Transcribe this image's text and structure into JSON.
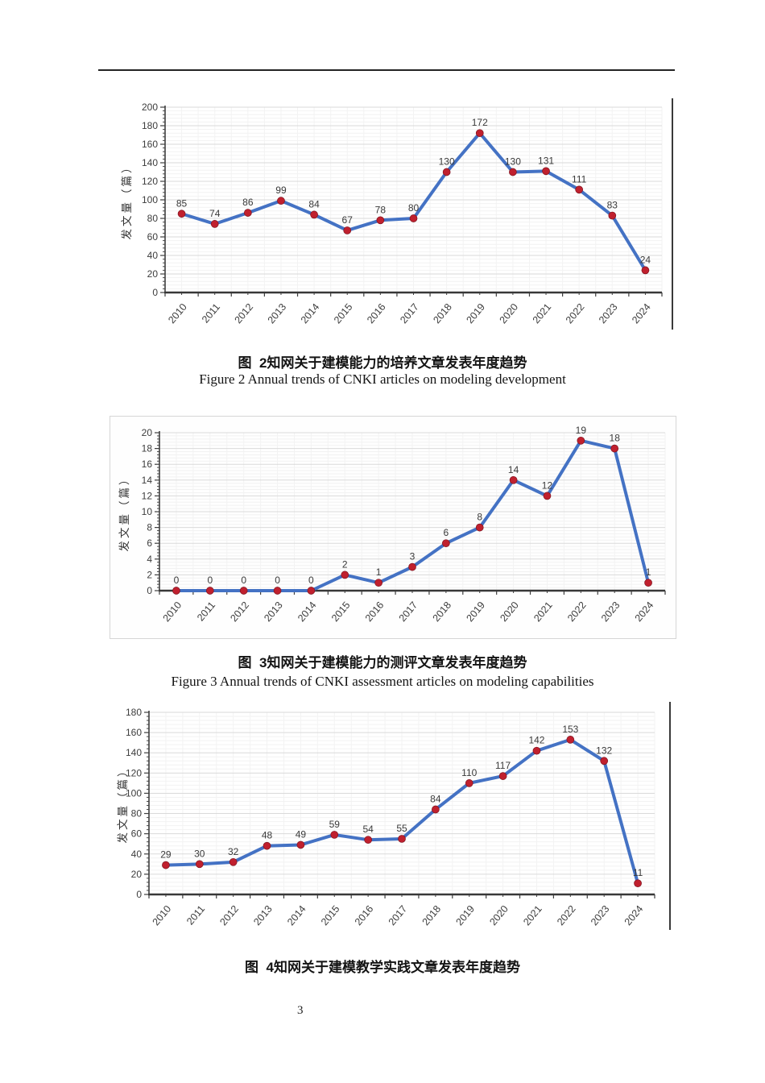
{
  "page": {
    "number": "3"
  },
  "figures": [
    {
      "caption_zh": "图  2知网关于建模能力的培养文章发表年度趋势",
      "caption_en": "Figure 2 Annual trends of CNKI articles on modeling development"
    },
    {
      "caption_zh": "图  3知网关于建模能力的测评文章发表年度趋势",
      "caption_en": "Figure 3 Annual trends of CNKI assessment articles on modeling capabilities"
    },
    {
      "caption_zh": "图  4知网关于建模教学实践文章发表年度趋势"
    }
  ],
  "chart_data": [
    {
      "type": "line",
      "title": "",
      "xlabel": "",
      "ylabel": "发文量（篇）",
      "categories": [
        "2010",
        "2011",
        "2012",
        "2013",
        "2014",
        "2015",
        "2016",
        "2017",
        "2018",
        "2019",
        "2020",
        "2021",
        "2022",
        "2023",
        "2024"
      ],
      "values": [
        85,
        74,
        86,
        99,
        84,
        67,
        78,
        80,
        130,
        172,
        130,
        131,
        111,
        83,
        24
      ],
      "ylim": [
        0,
        200
      ],
      "ytick_step": 20,
      "grid": true,
      "legend": false,
      "line_color": "#4472c4",
      "marker_color": "#c0202e"
    },
    {
      "type": "line",
      "title": "",
      "xlabel": "",
      "ylabel": "发文量（篇）",
      "categories": [
        "2010",
        "2011",
        "2012",
        "2013",
        "2014",
        "2015",
        "2016",
        "2017",
        "2018",
        "2019",
        "2020",
        "2021",
        "2022",
        "2023",
        "2024"
      ],
      "values": [
        0,
        0,
        0,
        0,
        0,
        2,
        1,
        3,
        6,
        8,
        14,
        12,
        19,
        18,
        1
      ],
      "ylim": [
        0,
        20
      ],
      "ytick_step": 2,
      "grid": true,
      "legend": false,
      "line_color": "#4472c4",
      "marker_color": "#c0202e"
    },
    {
      "type": "line",
      "title": "",
      "xlabel": "",
      "ylabel": "发文量（篇）",
      "categories": [
        "2010",
        "2011",
        "2012",
        "2013",
        "2014",
        "2015",
        "2016",
        "2017",
        "2018",
        "2019",
        "2020",
        "2021",
        "2022",
        "2023",
        "2024"
      ],
      "values": [
        29,
        30,
        32,
        48,
        49,
        59,
        54,
        55,
        84,
        110,
        117,
        142,
        153,
        132,
        11
      ],
      "ylim": [
        0,
        180
      ],
      "ytick_step": 20,
      "grid": true,
      "legend": false,
      "line_color": "#4472c4",
      "marker_color": "#c0202e"
    }
  ]
}
